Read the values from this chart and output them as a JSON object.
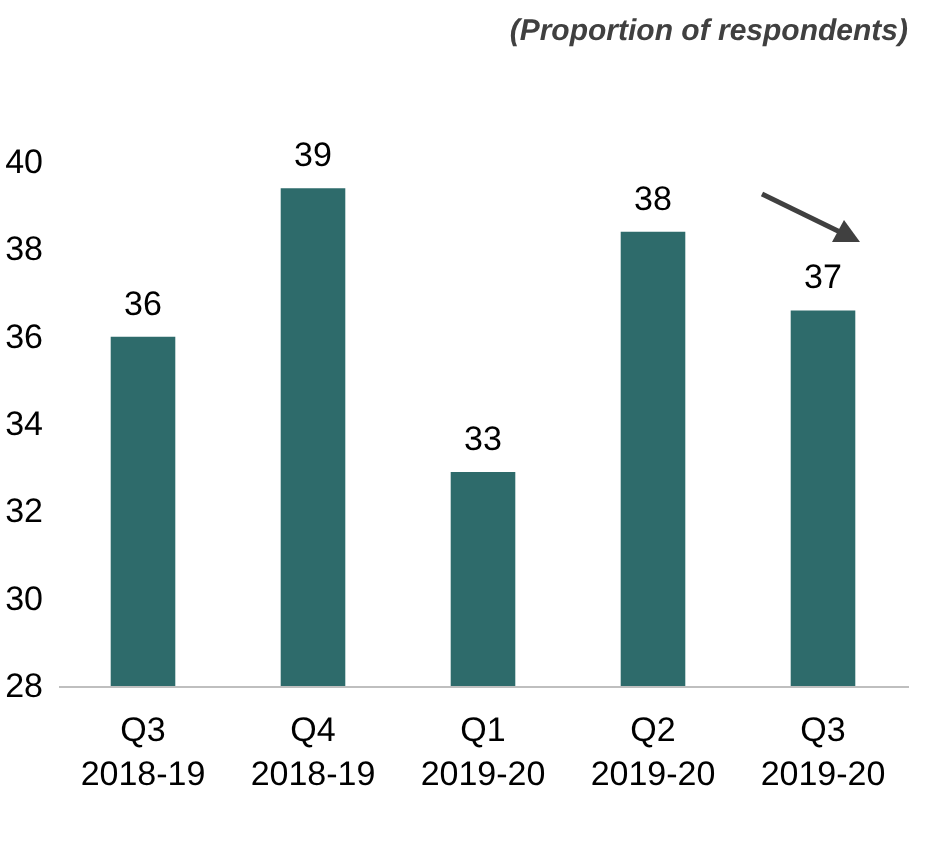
{
  "chart_data": {
    "type": "bar",
    "title": "(Proportion of respondents)",
    "categories": [
      "Q3 2018-19",
      "Q4 2018-19",
      "Q1 2019-20",
      "Q2 2019-20",
      "Q3 2019-20"
    ],
    "values": [
      36.0,
      39.4,
      32.9,
      38.4,
      36.6
    ],
    "value_labels": [
      "36",
      "39",
      "33",
      "38",
      "37"
    ],
    "color": "#2e6b6b",
    "ylim": [
      28,
      40
    ],
    "yticks": [
      28,
      30,
      32,
      34,
      36,
      38,
      40
    ],
    "grid": false
  }
}
